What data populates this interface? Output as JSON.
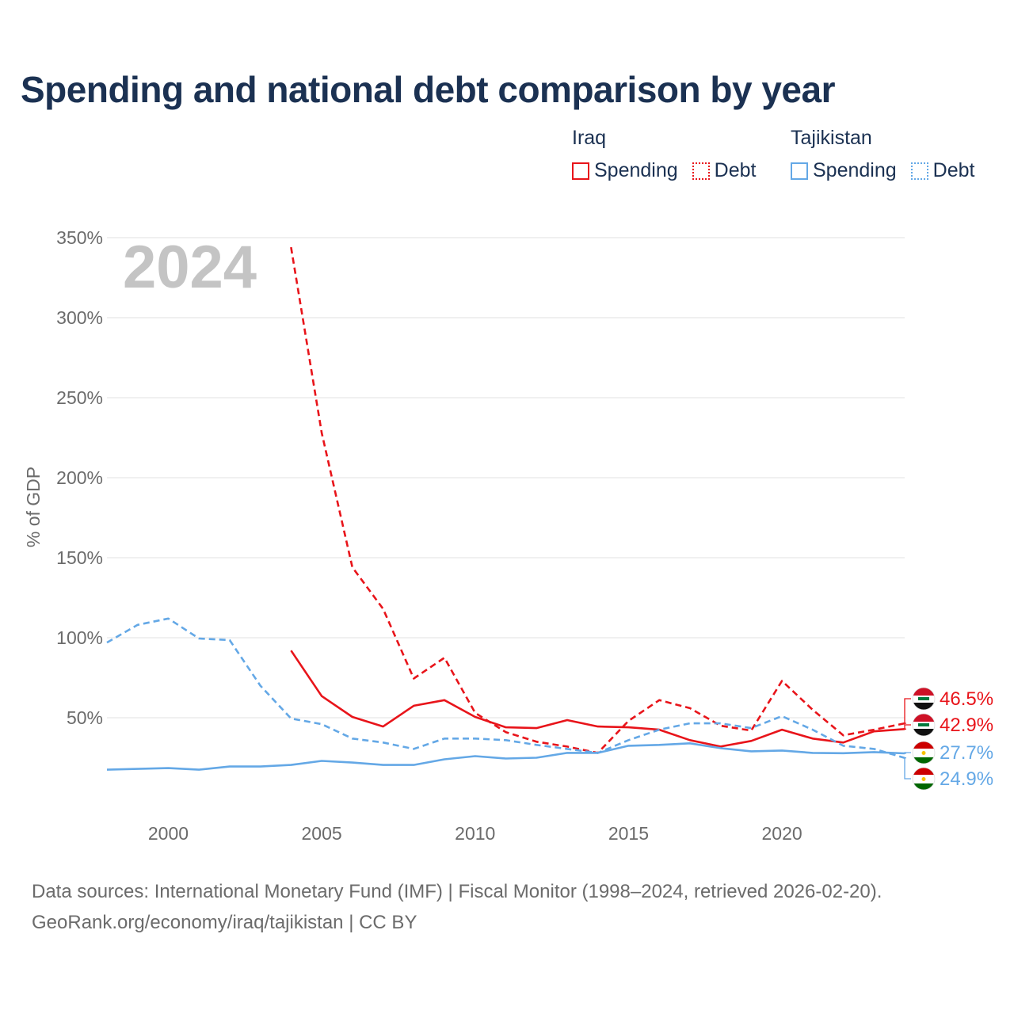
{
  "title": "Spending and national debt comparison by year",
  "year_watermark": "2024",
  "legend": {
    "groups": [
      {
        "name": "Iraq",
        "items": [
          {
            "label": "Spending",
            "style": "solid",
            "color": "#e8141a"
          },
          {
            "label": "Debt",
            "style": "dotted",
            "color": "#e8141a"
          }
        ]
      },
      {
        "name": "Tajikistan",
        "items": [
          {
            "label": "Spending",
            "style": "solid",
            "color": "#64a8e6"
          },
          {
            "label": "Debt",
            "style": "dotted",
            "color": "#64a8e6"
          }
        ]
      }
    ]
  },
  "footer": {
    "line1": "Data sources: International Monetary Fund (IMF) | Fiscal Monitor (1998–2024, retrieved 2026-02-20).",
    "line2": "GeoRank.org/economy/iraq/tajikistan | CC BY"
  },
  "colors": {
    "iraq": "#e8141a",
    "tajikistan": "#64a8e6",
    "title": "#1b3152",
    "axis_text": "#6b6b6b",
    "grid": "#e6e6e6",
    "watermark": "#c4c4c4"
  },
  "chart_data": {
    "type": "line",
    "title": "Spending and national debt comparison by year",
    "xlabel": "",
    "ylabel": "% of GDP",
    "xlim": [
      1998,
      2024
    ],
    "ylim": [
      0,
      350
    ],
    "x_ticks": [
      2000,
      2005,
      2010,
      2015,
      2020
    ],
    "y_ticks": [
      50,
      100,
      150,
      200,
      250,
      300,
      350
    ],
    "y_tick_labels": [
      "50%",
      "100%",
      "150%",
      "200%",
      "250%",
      "300%",
      "350%"
    ],
    "grid": true,
    "legend_position": "top-right",
    "series": [
      {
        "name": "Iraq Debt",
        "country": "Iraq",
        "metric": "Debt",
        "style": "dashed",
        "color": "#e8141a",
        "x": [
          2004,
          2005,
          2006,
          2007,
          2008,
          2009,
          2010,
          2011,
          2012,
          2013,
          2014,
          2015,
          2016,
          2017,
          2018,
          2019,
          2020,
          2021,
          2022,
          2023,
          2024
        ],
        "y": [
          344,
          228,
          144,
          118,
          74.5,
          87.5,
          53,
          41,
          35,
          32,
          28,
          48,
          61,
          56,
          45,
          42,
          73,
          55,
          39,
          42.5,
          46.5
        ],
        "end_label": "46.5%"
      },
      {
        "name": "Iraq Spending",
        "country": "Iraq",
        "metric": "Spending",
        "style": "solid",
        "color": "#e8141a",
        "x": [
          2004,
          2005,
          2006,
          2007,
          2008,
          2009,
          2010,
          2011,
          2012,
          2013,
          2014,
          2015,
          2016,
          2017,
          2018,
          2019,
          2020,
          2021,
          2022,
          2023,
          2024
        ],
        "y": [
          92,
          63.5,
          50.5,
          44.5,
          57.5,
          61,
          50.5,
          44,
          43.5,
          48.5,
          44.5,
          44,
          42.5,
          36,
          32,
          35.5,
          42.5,
          37,
          34.5,
          41.5,
          42.9
        ],
        "end_label": "42.9%"
      },
      {
        "name": "Tajikistan Spending",
        "country": "Tajikistan",
        "metric": "Spending",
        "style": "solid",
        "color": "#64a8e6",
        "x": [
          1998,
          1999,
          2000,
          2001,
          2002,
          2003,
          2004,
          2005,
          2006,
          2007,
          2008,
          2009,
          2010,
          2011,
          2012,
          2013,
          2014,
          2015,
          2016,
          2017,
          2018,
          2019,
          2020,
          2021,
          2022,
          2023,
          2024
        ],
        "y": [
          17.5,
          18,
          18.5,
          17.5,
          19.5,
          19.5,
          20.5,
          23,
          22,
          20.5,
          20.5,
          24,
          26,
          24.5,
          25,
          28,
          28,
          32.5,
          33,
          34,
          31,
          29,
          29.5,
          28,
          27.8,
          28.5,
          27.7
        ],
        "end_label": "27.7%"
      },
      {
        "name": "Tajikistan Debt",
        "country": "Tajikistan",
        "metric": "Debt",
        "style": "dashed",
        "color": "#64a8e6",
        "x": [
          1998,
          1999,
          2000,
          2001,
          2002,
          2003,
          2004,
          2005,
          2006,
          2007,
          2008,
          2009,
          2010,
          2011,
          2012,
          2013,
          2014,
          2015,
          2016,
          2017,
          2018,
          2019,
          2020,
          2021,
          2022,
          2023,
          2024
        ],
        "y": [
          97,
          108,
          112,
          99.5,
          98.5,
          70,
          49.5,
          46,
          37,
          34.5,
          30.5,
          37,
          37,
          36,
          33,
          30.5,
          28,
          36,
          42.5,
          46.5,
          46.5,
          43.5,
          51,
          42.5,
          32.5,
          30.5,
          24.9
        ],
        "end_label": "24.9%"
      }
    ]
  }
}
